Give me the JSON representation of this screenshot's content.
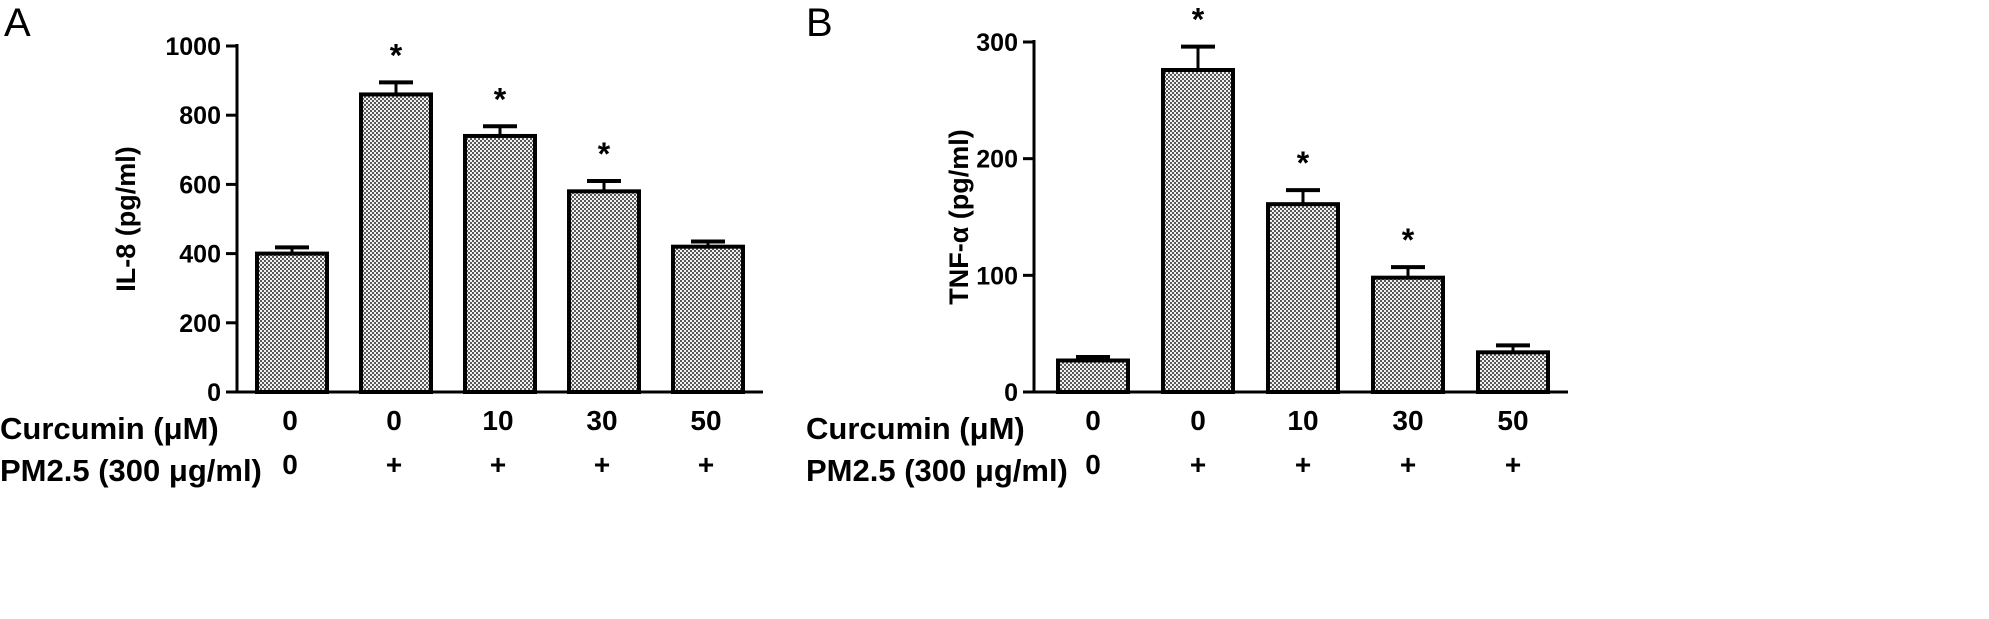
{
  "panels": [
    {
      "letter": "A",
      "row_labels": {
        "curcumin": "Curcumin (μM)",
        "pm25": "PM2.5 (300 μg/ml)"
      },
      "chart_data": {
        "type": "bar",
        "ylabel": "IL-8 (pg/ml)",
        "ylim": [
          0,
          1000
        ],
        "yticks": [
          "0",
          "200",
          "400",
          "600",
          "800",
          "1000"
        ],
        "categories": [
          "0/0",
          "0/+",
          "10/+",
          "30/+",
          "50/+"
        ],
        "curcumin": [
          "0",
          "0",
          "10",
          "30",
          "50"
        ],
        "pm25": [
          "0",
          "+",
          "+",
          "+",
          "+"
        ],
        "values": [
          400,
          860,
          740,
          580,
          420
        ],
        "errors": [
          18,
          35,
          28,
          30,
          15
        ],
        "significance": [
          "",
          "*",
          "*",
          "*",
          ""
        ],
        "grid": false,
        "bar_fill": "#9a9a9a"
      }
    },
    {
      "letter": "B",
      "row_labels": {
        "curcumin": "Curcumin (μM)",
        "pm25": "PM2.5 (300 μg/ml)"
      },
      "chart_data": {
        "type": "bar",
        "ylabel": "TNF-α (pg/ml)",
        "ylim": [
          0,
          300
        ],
        "yticks": [
          "0",
          "100",
          "200",
          "300"
        ],
        "categories": [
          "0/0",
          "0/+",
          "10/+",
          "30/+",
          "50/+"
        ],
        "curcumin": [
          "0",
          "0",
          "10",
          "30",
          "50"
        ],
        "pm25": [
          "0",
          "+",
          "+",
          "+",
          "+"
        ],
        "values": [
          27,
          276,
          161,
          98,
          34
        ],
        "errors": [
          3,
          20,
          12,
          9,
          6
        ],
        "significance": [
          "",
          "*",
          "*",
          "*",
          ""
        ],
        "grid": false,
        "bar_fill": "#9a9a9a"
      }
    }
  ]
}
